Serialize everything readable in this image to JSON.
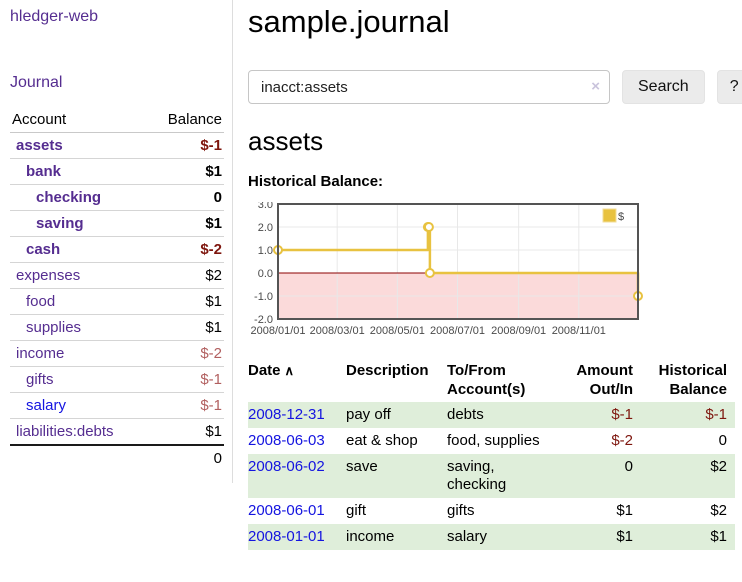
{
  "app": {
    "brand": "hledger-web",
    "nav_journal": "Journal"
  },
  "sidebar": {
    "headers": {
      "account": "Account",
      "balance": "Balance"
    },
    "accounts": [
      {
        "name": "assets",
        "indent": 1,
        "bold": true,
        "balance": "$-1"
      },
      {
        "name": "bank",
        "indent": 2,
        "bold": true,
        "balance": "$1"
      },
      {
        "name": "checking",
        "indent": 3,
        "bold": true,
        "balance": "0"
      },
      {
        "name": "saving",
        "indent": 3,
        "bold": true,
        "balance": "$1"
      },
      {
        "name": "cash",
        "indent": 2,
        "bold": true,
        "balance": "$-2"
      },
      {
        "name": "expenses",
        "indent": 1,
        "bold": false,
        "balance": "$2"
      },
      {
        "name": "food",
        "indent": 2,
        "bold": false,
        "balance": "$1"
      },
      {
        "name": "supplies",
        "indent": 2,
        "bold": false,
        "balance": "$1"
      },
      {
        "name": "income",
        "indent": 1,
        "bold": false,
        "balance": "$-2"
      },
      {
        "name": "gifts",
        "indent": 2,
        "bold": false,
        "balance": "$-1"
      },
      {
        "name": "salary",
        "indent": 2,
        "bold": false,
        "balance": "$-1",
        "link_color": "blue"
      },
      {
        "name": "liabilities:debts",
        "indent": 1,
        "bold": false,
        "balance": "$1"
      }
    ],
    "total": "0"
  },
  "header": {
    "title": "sample.journal"
  },
  "search": {
    "value": "inacct:assets",
    "clear_icon": "×",
    "button": "Search",
    "help_button": "?"
  },
  "account_page": {
    "title": "assets",
    "chart_label": "Historical Balance:"
  },
  "chart_data": {
    "type": "line",
    "step": true,
    "title": "Historical Balance:",
    "series": [
      {
        "name": "$",
        "color": "#e8c240",
        "points": [
          {
            "date": "2008-01-01",
            "value": 1
          },
          {
            "date": "2008-06-01",
            "value": 2
          },
          {
            "date": "2008-06-02",
            "value": 2
          },
          {
            "date": "2008-06-03",
            "value": 0
          },
          {
            "date": "2008-12-31",
            "value": -1
          }
        ]
      }
    ],
    "xlim": [
      "2008-01-01",
      "2008-12-31"
    ],
    "ylim": [
      -2,
      3
    ],
    "x_ticks": [
      "2008/01/01",
      "2008/03/01",
      "2008/05/01",
      "2008/07/01",
      "2008/09/01",
      "2008/11/01"
    ],
    "y_ticks": [
      3.0,
      2.0,
      1.0,
      0.0,
      -1.0,
      -2.0
    ],
    "grid": true,
    "legend_position": "top-right",
    "negative_region_color": "#fbdada",
    "zero_line_color": "#8b0000",
    "border_color": "#545454",
    "grid_color": "#e8e8e8"
  },
  "register": {
    "columns": [
      "Date",
      "Description",
      "To/From Account(s)",
      "Amount Out/In",
      "Historical Balance"
    ],
    "sort_icon": "∧",
    "rows": [
      {
        "date": "2008-12-31",
        "description": "pay off",
        "accounts": "debts",
        "amount": "$-1",
        "balance": "$-1"
      },
      {
        "date": "2008-06-03",
        "description": "eat & shop",
        "accounts": "food, supplies",
        "amount": "$-2",
        "balance": "0"
      },
      {
        "date": "2008-06-02",
        "description": "save",
        "accounts": "saving, checking",
        "amount": "0",
        "balance": "$2"
      },
      {
        "date": "2008-06-01",
        "description": "gift",
        "accounts": "gifts",
        "amount": "$1",
        "balance": "$2"
      },
      {
        "date": "2008-01-01",
        "description": "income",
        "accounts": "salary",
        "amount": "$1",
        "balance": "$1"
      }
    ]
  },
  "colors": {
    "link_purple": "#552d90",
    "link_blue": "#1414e0",
    "negative_strong": "#7e160e",
    "negative_soft": "#b15f5f",
    "row_stripe_green": "#dfeeda",
    "series_gold": "#e8c240"
  }
}
